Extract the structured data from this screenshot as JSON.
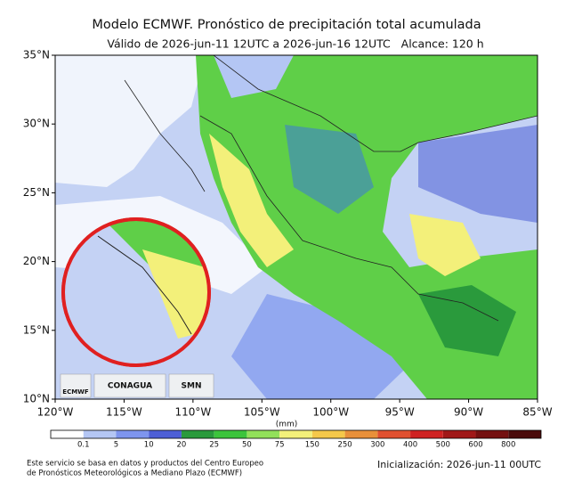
{
  "title": "Modelo ECMWF. Pronóstico de precipitación total acumulada",
  "subtitle": "Válido de 2026-jun-11 12UTC a 2026-jun-16 12UTC   Alcance: 120 h",
  "map": {
    "lat_lim": [
      10,
      35
    ],
    "lon_lim": [
      -120,
      -85
    ],
    "lat_ticks": [
      {
        "value": 35,
        "label": "35°N"
      },
      {
        "value": 30,
        "label": "30°N"
      },
      {
        "value": 25,
        "label": "25°N"
      },
      {
        "value": 20,
        "label": "20°N"
      },
      {
        "value": 15,
        "label": "15°N"
      },
      {
        "value": 10,
        "label": "10°N"
      }
    ],
    "lon_ticks": [
      {
        "value": -120,
        "label": "120°W"
      },
      {
        "value": -115,
        "label": "115°W"
      },
      {
        "value": -110,
        "label": "110°W"
      },
      {
        "value": -105,
        "label": "105°W"
      },
      {
        "value": -100,
        "label": "100°W"
      },
      {
        "value": -95,
        "label": "95°W"
      },
      {
        "value": -90,
        "label": "90°W"
      },
      {
        "value": -85,
        "label": "85°W"
      }
    ]
  },
  "logos": [
    "ECMWF",
    "CONAGUA",
    "SMN"
  ],
  "colorbar": {
    "unit": "(mm)",
    "levels": [
      0.1,
      5,
      10,
      20,
      25,
      50,
      75,
      150,
      250,
      300,
      400,
      500,
      600,
      800
    ],
    "colors": [
      "#ffffff",
      "#b4c6f4",
      "#7e95ee",
      "#4d5fd6",
      "#2a9a3c",
      "#3cc43c",
      "#92e05a",
      "#f3f07a",
      "#f5c84a",
      "#e8903a",
      "#e05030",
      "#cf2222",
      "#a01818",
      "#741010",
      "#4a0a0a"
    ]
  },
  "footer": {
    "note": [
      "Este servicio se basa en datos y productos del Centro Europeo",
      "de Pronósticos Meteorológicos a Mediano Plazo (ECMWF)"
    ],
    "init": "Inicialización: 2026-jun-11 00UTC"
  }
}
